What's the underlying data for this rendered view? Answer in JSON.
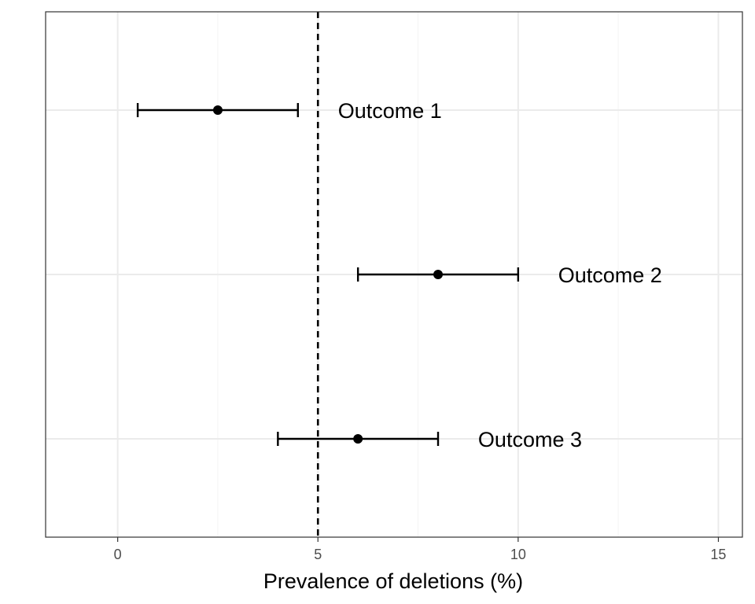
{
  "chart_data": {
    "type": "forest",
    "title": "",
    "xlabel": "Prevalence of deletions (%)",
    "ylabel": "",
    "xlim": [
      -1.8,
      15.6
    ],
    "ylim": [
      0,
      1
    ],
    "x_ticks": [
      0,
      5,
      10,
      15
    ],
    "x_tick_labels": [
      "0",
      "5",
      "10",
      "15"
    ],
    "x_minor_ticks": [
      2.5,
      7.5,
      12.5
    ],
    "reference_line": {
      "x": 5,
      "style": "dashed"
    },
    "grid": true,
    "legend": "none",
    "points": [
      {
        "label": "Outcome 1",
        "estimate": 2.5,
        "lower": 0.5,
        "upper": 4.5,
        "label_x": 5.5
      },
      {
        "label": "Outcome 2",
        "estimate": 8,
        "lower": 6,
        "upper": 10,
        "label_x": 11
      },
      {
        "label": "Outcome 3",
        "estimate": 6,
        "lower": 4,
        "upper": 8,
        "label_x": 9
      }
    ],
    "colors": {
      "panel_border": "#333333",
      "grid_major": "#ebebeb",
      "grid_minor": "#f5f5f5",
      "marks": "#000000"
    }
  }
}
